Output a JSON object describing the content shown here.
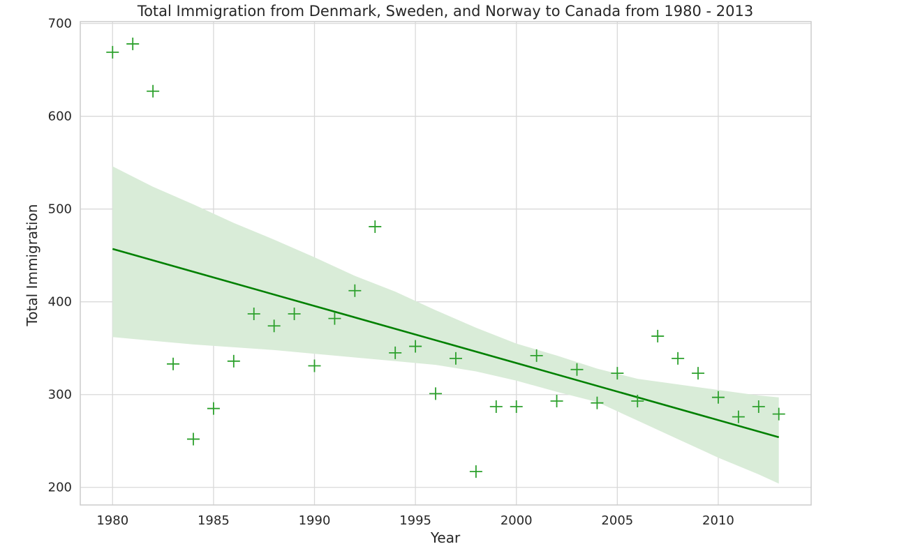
{
  "chart_data": {
    "type": "scatter",
    "title": "Total Immigration from Denmark, Sweden, and Norway to Canada from 1980 - 2013",
    "xlabel": "Year",
    "ylabel": "Total Immigration",
    "xlim": [
      1978.4,
      2014.6
    ],
    "ylim": [
      181,
      702
    ],
    "xticks": [
      1980,
      1985,
      1990,
      1995,
      2000,
      2005,
      2010
    ],
    "yticks": [
      200,
      300,
      400,
      500,
      600,
      700
    ],
    "grid": true,
    "marker": "+",
    "colors": {
      "points": "#2ca02c",
      "regression": "#008000",
      "band": "#d9ecd8",
      "grid": "#d9d9d9",
      "frame": "#cccccc"
    },
    "series": [
      {
        "x": [
          1980,
          1981,
          1982,
          1983,
          1984,
          1985,
          1986,
          1987,
          1988,
          1989,
          1990,
          1991,
          1992,
          1993,
          1994,
          1995,
          1996,
          1997,
          1998,
          1999,
          2000,
          2001,
          2002,
          2003,
          2004,
          2005,
          2006,
          2007,
          2008,
          2009,
          2010,
          2011,
          2012,
          2013
        ],
        "y": [
          669,
          678,
          627,
          333,
          252,
          285,
          336,
          387,
          374,
          387,
          331,
          382,
          412,
          481,
          345,
          352,
          301,
          339,
          217,
          287,
          287,
          342,
          293,
          327,
          291,
          323,
          293,
          363,
          339,
          323,
          297,
          276,
          287,
          279
        ]
      }
    ],
    "regression": {
      "x": [
        1980,
        2013
      ],
      "y": [
        457,
        254
      ],
      "ci": {
        "x": [
          1980,
          1982,
          1984,
          1986,
          1988,
          1990,
          1992,
          1994,
          1996,
          1998,
          2000,
          2002,
          2004,
          2006,
          2008,
          2010,
          2012,
          2013
        ],
        "upper": [
          546,
          524,
          505,
          485,
          467,
          448,
          428,
          411,
          391,
          372,
          355,
          342,
          328,
          317,
          311,
          305,
          299,
          297
        ],
        "lower": [
          362,
          358,
          354,
          351,
          348,
          344,
          340,
          336,
          332,
          325,
          315,
          303,
          292,
          272,
          252,
          232,
          214,
          204
        ]
      }
    }
  }
}
